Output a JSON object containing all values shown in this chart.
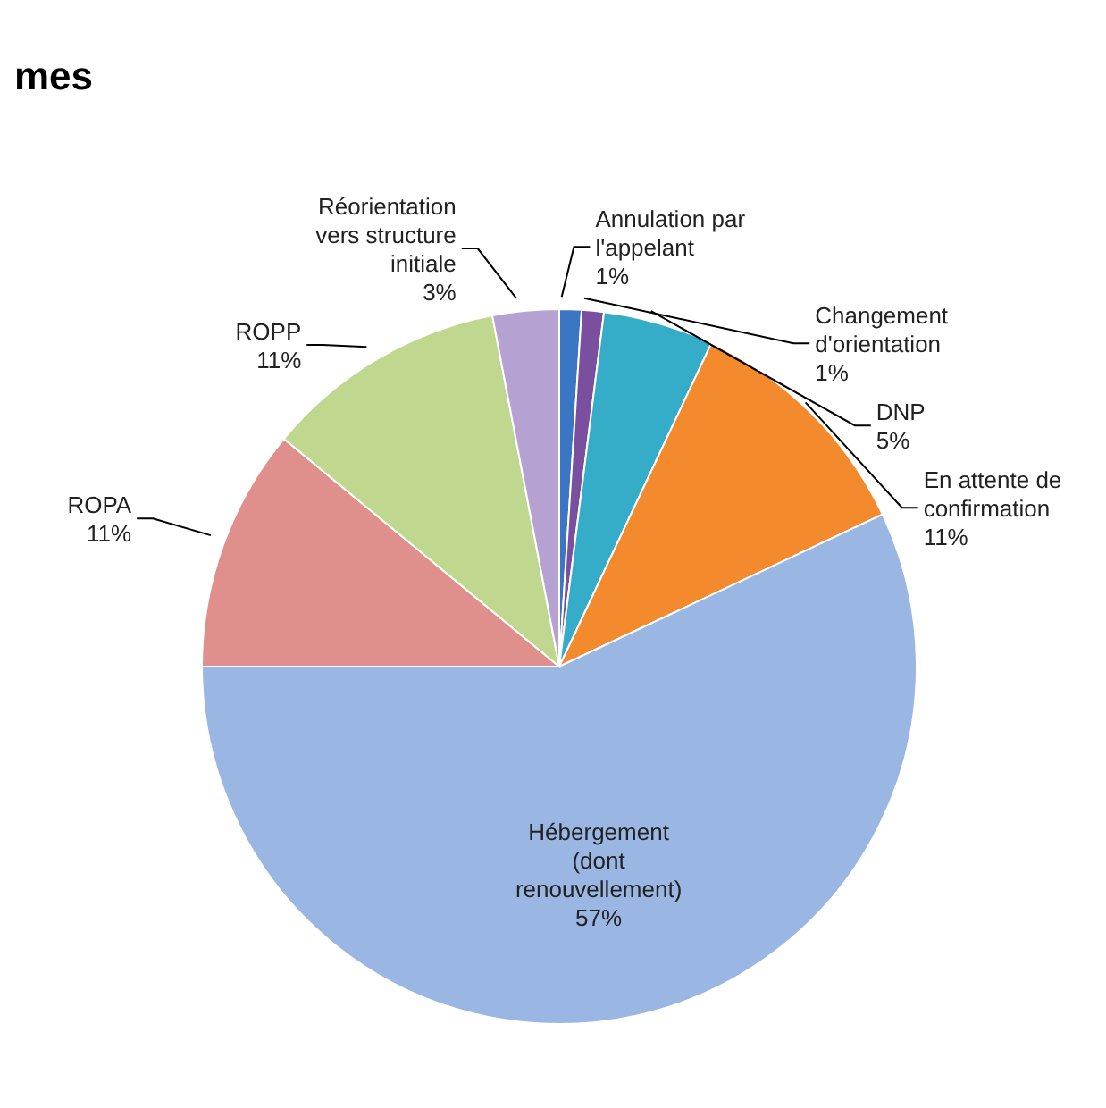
{
  "chart_data": {
    "type": "pie",
    "title": "mes",
    "categories": [
      "Annulation par l'appelant",
      "Changement d'orientation",
      "DNP",
      "En attente de confirmation",
      "Hébergement (dont renouvellement)",
      "ROPA",
      "ROPP",
      "Réorientation vers structure initiale"
    ],
    "values": [
      1,
      1,
      5,
      11,
      57,
      11,
      11,
      3
    ],
    "colors": [
      "#3a76c4",
      "#7b4fa0",
      "#35adc8",
      "#f38a2e",
      "#9ab6e2",
      "#e0908c",
      "#c0d78f",
      "#b6a2d2"
    ],
    "value_labels": [
      "1%",
      "1%",
      "5%",
      "11%",
      "57%",
      "11%",
      "11%",
      "3%"
    ],
    "legend": false
  }
}
